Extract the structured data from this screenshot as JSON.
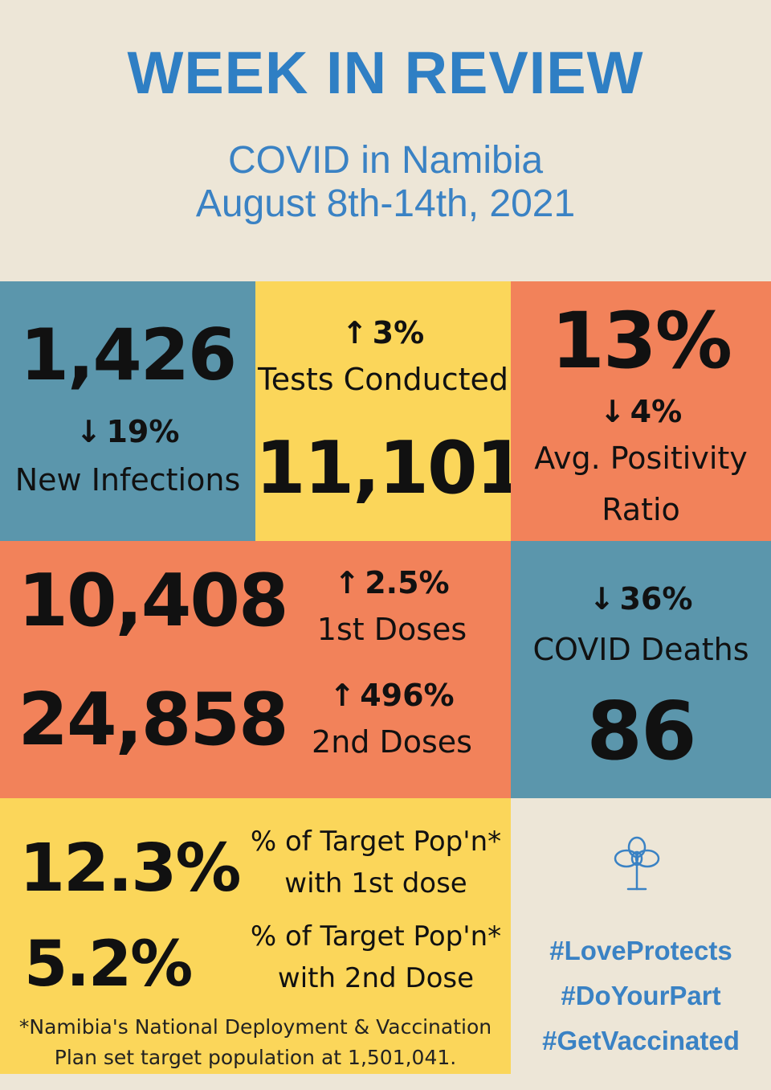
{
  "header": {
    "title": "WEEK IN REVIEW",
    "subtitle_line1": "COVID in Namibia",
    "subtitle_line2": "August 8th-14th, 2021"
  },
  "infections": {
    "value": "1,426",
    "change_arrow": "↓",
    "change": "19%",
    "label": "New Infections"
  },
  "tests": {
    "change_arrow": "↑",
    "change": "3%",
    "label": "Tests Conducted",
    "value": "11,101"
  },
  "positivity": {
    "value": "13%",
    "change_arrow": "↓",
    "change": "4%",
    "label_line1": "Avg. Positivity",
    "label_line2": "Ratio"
  },
  "doses": {
    "first": {
      "value": "10,408",
      "change_arrow": "↑",
      "change": "2.5%",
      "label": "1st Doses"
    },
    "second": {
      "value": "24,858",
      "change_arrow": "↑",
      "change": "496%",
      "label": "2nd Doses"
    }
  },
  "deaths": {
    "change_arrow": "↓",
    "change": "36%",
    "label": "COVID Deaths",
    "value": "86"
  },
  "coverage": {
    "first": {
      "value": "12.3%",
      "label_line1": "% of Target Pop'n*",
      "label_line2": "with 1st dose"
    },
    "second": {
      "value": "5.2%",
      "label_line1": "% of Target Pop'n*",
      "label_line2": "with 2nd Dose"
    },
    "footnote_line1": "*Namibia's National  Deployment & Vaccination",
    "footnote_line2": "Plan set target population at 1,501,041."
  },
  "hashtags": [
    "#LoveProtects",
    "#DoYourPart",
    "#GetVaccinated"
  ],
  "colors": {
    "blue_tile": "#5b96ac",
    "yellow_tile": "#fbd65a",
    "orange_tile": "#f2825a",
    "background": "#ede6d7",
    "accent_text": "#2f7fc4"
  },
  "icons": {
    "tree": "tree-icon"
  }
}
